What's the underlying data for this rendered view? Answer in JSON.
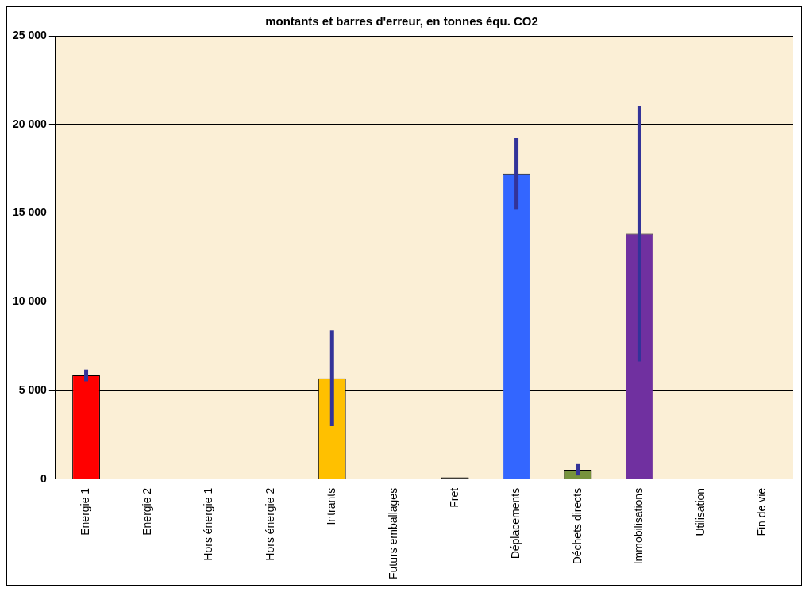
{
  "chart_data": {
    "type": "bar",
    "title": "montants et barres d'erreur, en tonnes équ. CO2",
    "categories": [
      "Energie 1",
      "Energie 2",
      "Hors énergie 1",
      "Hors énergie 2",
      "Intrants",
      "Futurs emballages",
      "Fret",
      "Déplacements",
      "Déchets directs",
      "Immobilisations",
      "Utilisation",
      "Fin de vie"
    ],
    "values": [
      5850,
      0,
      0,
      0,
      5690,
      0,
      100,
      17230,
      530,
      13840,
      0,
      0
    ],
    "errors": [
      330,
      null,
      null,
      null,
      2700,
      null,
      null,
      2000,
      320,
      7200,
      null,
      null
    ],
    "colors": [
      "#ff0000",
      "#ff0000",
      "#ff0000",
      "#ff0000",
      "#ffc000",
      "#ffc000",
      "#000000",
      "#3366ff",
      "#77933c",
      "#7030a0",
      "#7030a0",
      "#7030a0"
    ],
    "ylim": [
      0,
      25000
    ],
    "yticks": [
      {
        "value": 0,
        "label": "0"
      },
      {
        "value": 5000,
        "label": "5 000"
      },
      {
        "value": 10000,
        "label": "10 000"
      },
      {
        "value": 15000,
        "label": "15 000"
      },
      {
        "value": 20000,
        "label": "20 000"
      },
      {
        "value": 25000,
        "label": "25 000"
      }
    ],
    "grid": "y",
    "legend": false
  }
}
